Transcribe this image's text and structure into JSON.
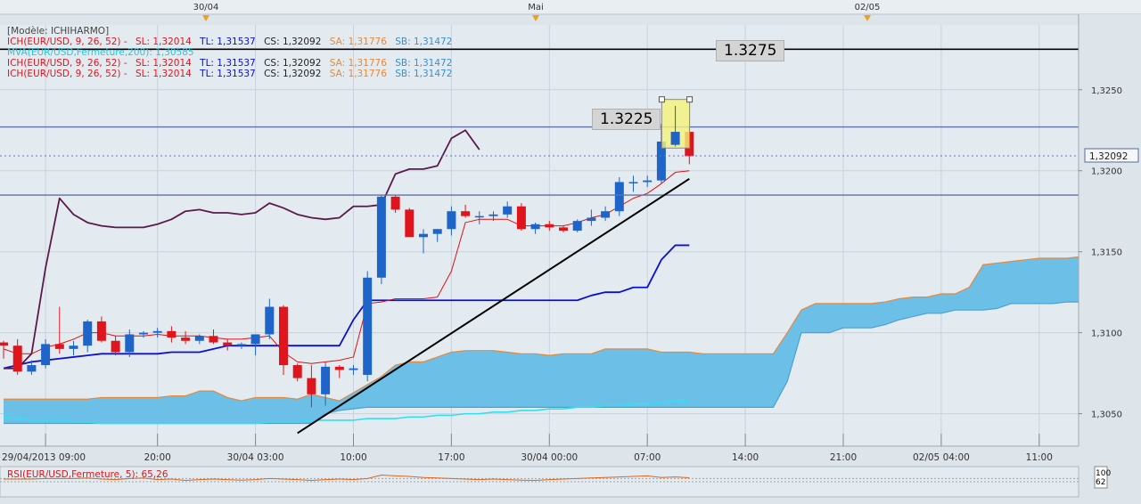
{
  "header_dates": [
    "30/04",
    "Mai",
    "02/05"
  ],
  "legend": {
    "model": "[Modèle: ICHIHARMO]",
    "rows": [
      {
        "name": "ICH(EUR/USD, 9, 26, 52) -",
        "sl": "SL: 1,32014",
        "tl": "TL: 1,31537",
        "cs": "CS: 1,32092",
        "sa": "SA: 1,31776",
        "sb": "SB: 1,31472"
      },
      {
        "name": "MVA(EUR/USD,Fermeture,200): 1,30585",
        "sl": "",
        "tl": "",
        "cs": "",
        "sa": "",
        "sb": ""
      },
      {
        "name": "ICH(EUR/USD, 9, 26, 52) -",
        "sl": "SL: 1,32014",
        "tl": "TL: 1,31537",
        "cs": "CS: 1,32092",
        "sa": "SA: 1,31776",
        "sb": "SB: 1,31472"
      },
      {
        "name": "ICH(EUR/USD, 9, 26, 52) -",
        "sl": "SL: 1,32014",
        "tl": "TL: 1,31537",
        "cs": "CS: 1,32092",
        "sa": "SA: 1,31776",
        "sb": "SB: 1,31472"
      }
    ]
  },
  "annotations": {
    "level_high": "1.3275",
    "level_mid": "1.3225"
  },
  "price_tag": "1,32092",
  "rsi_label": "RSI(EUR/USD,Fermeture, 5): 65,26",
  "rsi_scale": [
    "100",
    "62"
  ],
  "colors": {
    "bg": "#dde4ea",
    "up": "#1f64c8",
    "down": "#e0141c",
    "tenkan": "#e01010",
    "kijun": "#0a10d0",
    "chikou": "#5a1a4a",
    "cloud_bull": "#6cc0e8",
    "cloud_bear": "#f5b987",
    "mva": "#30e0f0",
    "span_a": "#e6883a",
    "span_b": "#4b9fd6",
    "trend": "#000000"
  },
  "chart_data": {
    "type": "candlestick",
    "title": "",
    "xlabel": "",
    "ylabel": "",
    "ylim": [
      1.303,
      1.329
    ],
    "y_ticks": [
      1.305,
      1.31,
      1.315,
      1.32,
      1.325
    ],
    "y_tick_labels": [
      "1,3050",
      "1,3100",
      "1,3150",
      "1,3200",
      "1,3250"
    ],
    "x_tick_labels": [
      "29/04/2013 09:00",
      "20:00",
      "30/04 03:00",
      "10:00",
      "17:00",
      "30/04 00:00",
      "07:00",
      "14:00",
      "21:00",
      "02/05 04:00",
      "11:00"
    ],
    "x_tick_index": [
      3,
      11,
      18,
      25,
      32,
      39,
      46,
      53,
      60,
      67,
      74
    ],
    "candles": [
      [
        1.3094,
        1.3095,
        1.3084,
        1.3092
      ],
      [
        1.3092,
        1.3096,
        1.3074,
        1.3076
      ],
      [
        1.3076,
        1.3083,
        1.3074,
        1.308
      ],
      [
        1.308,
        1.3096,
        1.3078,
        1.3093
      ],
      [
        1.3093,
        1.3116,
        1.3087,
        1.309
      ],
      [
        1.309,
        1.3095,
        1.3086,
        1.3092
      ],
      [
        1.3092,
        1.3108,
        1.3088,
        1.3107
      ],
      [
        1.3107,
        1.311,
        1.3094,
        1.3095
      ],
      [
        1.3095,
        1.3098,
        1.3086,
        1.3088
      ],
      [
        1.3088,
        1.3102,
        1.3085,
        1.3099
      ],
      [
        1.3099,
        1.3101,
        1.3097,
        1.31
      ],
      [
        1.31,
        1.3103,
        1.3097,
        1.3101
      ],
      [
        1.3101,
        1.3104,
        1.3094,
        1.3097
      ],
      [
        1.3097,
        1.3101,
        1.3093,
        1.3095
      ],
      [
        1.3095,
        1.3099,
        1.3093,
        1.3098
      ],
      [
        1.3098,
        1.3102,
        1.3093,
        1.3094
      ],
      [
        1.3094,
        1.3096,
        1.3089,
        1.3092
      ],
      [
        1.3092,
        1.3094,
        1.309,
        1.3093
      ],
      [
        1.3093,
        1.3099,
        1.3086,
        1.3099
      ],
      [
        1.3099,
        1.3121,
        1.3096,
        1.3116
      ],
      [
        1.3116,
        1.3117,
        1.3074,
        1.308
      ],
      [
        1.308,
        1.3081,
        1.307,
        1.3072
      ],
      [
        1.3072,
        1.308,
        1.3054,
        1.3062
      ],
      [
        1.3062,
        1.3082,
        1.3055,
        1.3079
      ],
      [
        1.3079,
        1.308,
        1.3072,
        1.3077
      ],
      [
        1.3077,
        1.308,
        1.3074,
        1.3078
      ],
      [
        1.3074,
        1.3138,
        1.307,
        1.3134
      ],
      [
        1.3134,
        1.3185,
        1.313,
        1.3184
      ],
      [
        1.3184,
        1.3185,
        1.3174,
        1.3176
      ],
      [
        1.3176,
        1.3177,
        1.3159,
        1.3159
      ],
      [
        1.3159,
        1.3164,
        1.3149,
        1.3161
      ],
      [
        1.3161,
        1.3164,
        1.3156,
        1.3164
      ],
      [
        1.3164,
        1.3178,
        1.316,
        1.3175
      ],
      [
        1.3175,
        1.3179,
        1.3171,
        1.3172
      ],
      [
        1.3172,
        1.3175,
        1.3167,
        1.3172
      ],
      [
        1.3172,
        1.3175,
        1.3169,
        1.3173
      ],
      [
        1.3173,
        1.3181,
        1.3171,
        1.3178
      ],
      [
        1.3178,
        1.318,
        1.3163,
        1.3164
      ],
      [
        1.3164,
        1.3168,
        1.3161,
        1.3167
      ],
      [
        1.3167,
        1.3169,
        1.3163,
        1.3165
      ],
      [
        1.3165,
        1.3166,
        1.3162,
        1.3163
      ],
      [
        1.3163,
        1.317,
        1.3162,
        1.3169
      ],
      [
        1.3169,
        1.3176,
        1.3166,
        1.3171
      ],
      [
        1.3171,
        1.3178,
        1.3169,
        1.3175
      ],
      [
        1.3175,
        1.3196,
        1.3172,
        1.3193
      ],
      [
        1.3193,
        1.3197,
        1.3187,
        1.3193
      ],
      [
        1.3193,
        1.3197,
        1.319,
        1.3194
      ],
      [
        1.3194,
        1.3229,
        1.3192,
        1.3218
      ],
      [
        1.3216,
        1.324,
        1.3215,
        1.3224
      ],
      [
        1.3224,
        1.3227,
        1.3204,
        1.3209
      ]
    ],
    "tenkan": [
      1.309,
      1.3087,
      1.3087,
      1.3091,
      1.3093,
      1.3096,
      1.31,
      1.31,
      1.3098,
      1.3098,
      1.3098,
      1.3099,
      1.3098,
      1.3098,
      1.3098,
      1.3097,
      1.3096,
      1.3096,
      1.3097,
      1.3098,
      1.3088,
      1.3082,
      1.3081,
      1.3082,
      1.3083,
      1.3085,
      1.3118,
      1.3119,
      1.3121,
      1.3121,
      1.3121,
      1.3122,
      1.3138,
      1.3168,
      1.317,
      1.317,
      1.317,
      1.3166,
      1.3166,
      1.3166,
      1.3166,
      1.3168,
      1.3171,
      1.3173,
      1.3178,
      1.3183,
      1.3186,
      1.3192,
      1.3199,
      1.32
    ],
    "kijun": [
      1.3078,
      1.308,
      1.3082,
      1.3083,
      1.3084,
      1.3085,
      1.3086,
      1.3087,
      1.3087,
      1.3087,
      1.3087,
      1.3087,
      1.3088,
      1.3088,
      1.3088,
      1.309,
      1.3092,
      1.3092,
      1.3092,
      1.3092,
      1.3092,
      1.3092,
      1.3092,
      1.3092,
      1.3092,
      1.3108,
      1.312,
      1.312,
      1.312,
      1.312,
      1.312,
      1.312,
      1.312,
      1.312,
      1.312,
      1.312,
      1.312,
      1.312,
      1.312,
      1.312,
      1.312,
      1.312,
      1.3123,
      1.3125,
      1.3125,
      1.3128,
      1.3128,
      1.3145,
      1.3154,
      1.3154
    ],
    "chikou": [
      1.3078,
      1.3078,
      1.3087,
      1.314,
      1.3183,
      1.3173,
      1.3168,
      1.3166,
      1.3165,
      1.3165,
      1.3165,
      1.3167,
      1.317,
      1.3175,
      1.3176,
      1.3174,
      1.3174,
      1.3173,
      1.3174,
      1.318,
      1.3177,
      1.3173,
      1.3171,
      1.317,
      1.3171,
      1.3178,
      1.3178,
      1.3179,
      1.3198,
      1.3201,
      1.3201,
      1.3203,
      1.322,
      1.3225,
      1.3213
    ],
    "chikou_start_index": 0,
    "span_a": [
      1.3059,
      1.3059,
      1.3059,
      1.3059,
      1.3059,
      1.3059,
      1.3059,
      1.306,
      1.306,
      1.306,
      1.306,
      1.306,
      1.3061,
      1.3061,
      1.3064,
      1.3064,
      1.306,
      1.3058,
      1.306,
      1.306,
      1.306,
      1.3059,
      1.3062,
      1.306,
      1.3058,
      1.3063,
      1.3068,
      1.3073,
      1.308,
      1.3082,
      1.3082,
      1.3085,
      1.3088,
      1.3089,
      1.3089,
      1.3089,
      1.3088,
      1.3087,
      1.3087,
      1.3086,
      1.3087,
      1.3087,
      1.3087,
      1.309,
      1.309,
      1.309,
      1.309,
      1.3088,
      1.3088,
      1.3088,
      1.3087,
      1.3087,
      1.3087,
      1.3087,
      1.3087,
      1.3087,
      1.31,
      1.3114,
      1.3118,
      1.3118,
      1.3118,
      1.3118,
      1.3118,
      1.3119,
      1.3121,
      1.3122,
      1.3122,
      1.3124,
      1.3124,
      1.3128,
      1.3142,
      1.3143,
      1.3144,
      1.3145,
      1.3146,
      1.3146,
      1.3146,
      1.3147,
      1.3147,
      1.3147,
      1.3147,
      1.3152,
      1.3156,
      1.3156,
      1.3166,
      1.3178
    ],
    "span_b": [
      1.3044,
      1.3044,
      1.3044,
      1.3044,
      1.3044,
      1.3044,
      1.3044,
      1.3044,
      1.3044,
      1.3044,
      1.3044,
      1.3044,
      1.3044,
      1.3044,
      1.3044,
      1.3044,
      1.3044,
      1.3044,
      1.3044,
      1.3044,
      1.3044,
      1.3044,
      1.3044,
      1.305,
      1.3052,
      1.3053,
      1.3054,
      1.3054,
      1.3054,
      1.3054,
      1.3054,
      1.3054,
      1.3054,
      1.3054,
      1.3054,
      1.3054,
      1.3054,
      1.3054,
      1.3054,
      1.3054,
      1.3054,
      1.3054,
      1.3054,
      1.3054,
      1.3054,
      1.3054,
      1.3054,
      1.3054,
      1.3054,
      1.3054,
      1.3054,
      1.3054,
      1.3054,
      1.3054,
      1.3054,
      1.3054,
      1.307,
      1.31,
      1.31,
      1.31,
      1.3103,
      1.3103,
      1.3103,
      1.3105,
      1.3108,
      1.311,
      1.3112,
      1.3112,
      1.3114,
      1.3114,
      1.3114,
      1.3115,
      1.3118,
      1.3118,
      1.3118,
      1.3118,
      1.3119,
      1.3119,
      1.3119,
      1.312,
      1.3123,
      1.3127,
      1.3137,
      1.314,
      1.3147,
      1.3147
    ],
    "mva": [
      1.3048,
      1.3047,
      1.3046,
      1.3046,
      1.3046,
      1.3045,
      1.3045,
      1.3044,
      1.3044,
      1.3044,
      1.3044,
      1.3044,
      1.3044,
      1.3044,
      1.3044,
      1.3044,
      1.3044,
      1.3044,
      1.3044,
      1.3045,
      1.3045,
      1.3045,
      1.3046,
      1.3046,
      1.3046,
      1.3046,
      1.3047,
      1.3047,
      1.3047,
      1.3048,
      1.3048,
      1.3049,
      1.3049,
      1.305,
      1.305,
      1.3051,
      1.3051,
      1.3052,
      1.3052,
      1.3053,
      1.3053,
      1.3054,
      1.3054,
      1.3055,
      1.3055,
      1.3056,
      1.3056,
      1.3057,
      1.3058,
      1.3058
    ],
    "hlines": [
      1.3275,
      1.3227,
      1.3185
    ],
    "dotted_level": 1.32092,
    "trendline": [
      [
        21,
        1.3038
      ],
      [
        49,
        1.3195
      ]
    ],
    "rsi": [
      60,
      60,
      60,
      62,
      62,
      62,
      64,
      60,
      58,
      62,
      64,
      58,
      60,
      55,
      58,
      60,
      58,
      56,
      58,
      62,
      60,
      58,
      55,
      58,
      60,
      58,
      62,
      75,
      72,
      70,
      66,
      64,
      62,
      60,
      58,
      60,
      58,
      56,
      55,
      58,
      60,
      62,
      64,
      66,
      68,
      70,
      72,
      66,
      68,
      65
    ]
  }
}
